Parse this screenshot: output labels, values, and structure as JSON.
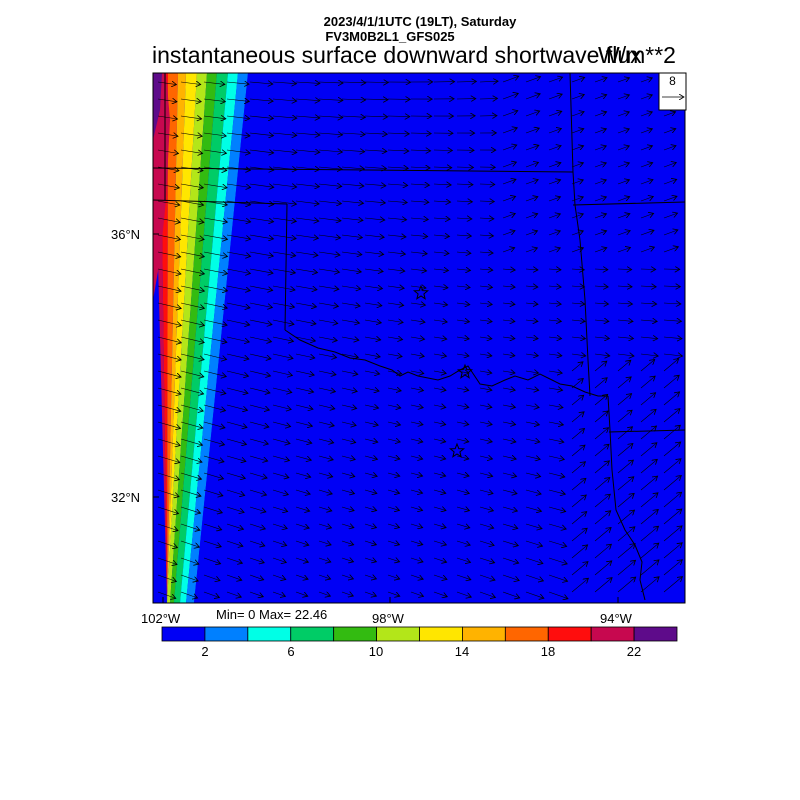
{
  "header": {
    "line1": "2023/4/1/1UTC (19LT), Saturday",
    "line2": "FV3M0B2L1_GFS025",
    "title": "instantaneous surface downward shortwave flux",
    "units": "W/m**2"
  },
  "axes": {
    "lat_labels": [
      "36°N",
      "32°N"
    ],
    "lon_labels": [
      "102°W",
      "98°W",
      "94°W"
    ]
  },
  "stats": {
    "text": "Min= 0 Max= 22.46"
  },
  "reference_vector": {
    "label": "8"
  },
  "colorbar": {
    "colors": [
      "#0000f5",
      "#0080ff",
      "#00ffe6",
      "#00cc66",
      "#33bb11",
      "#b3e619",
      "#ffe600",
      "#ffb300",
      "#ff6600",
      "#ff0d0d",
      "#c7084f",
      "#5e0b8a"
    ],
    "tick_labels": [
      "2",
      "6",
      "10",
      "14",
      "18",
      "22"
    ]
  },
  "map": {
    "background_color": "#0000f5",
    "markers": [
      "star",
      "star",
      "star"
    ]
  }
}
